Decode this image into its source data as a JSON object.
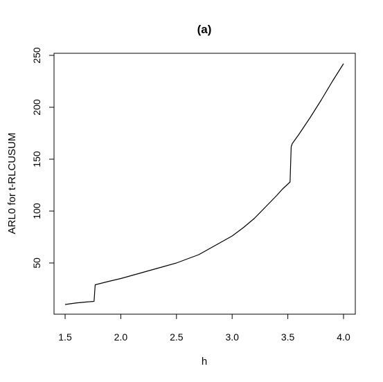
{
  "chart_data": {
    "type": "line",
    "title": "(a)",
    "xlabel": "h",
    "ylabel": "ARL0 for t-RLCUSUM",
    "xlim": [
      1.5,
      4.0
    ],
    "ylim": [
      10,
      242
    ],
    "xticks": [
      1.5,
      2.0,
      2.5,
      3.0,
      3.5,
      4.0
    ],
    "xtick_labels": [
      "1.5",
      "2.0",
      "2.5",
      "3.0",
      "3.5",
      "4.0"
    ],
    "yticks": [
      50,
      100,
      150,
      200,
      250
    ],
    "ytick_labels": [
      "50",
      "100",
      "150",
      "200",
      "250"
    ],
    "grid": false,
    "series": [
      {
        "name": "",
        "color": "#000000",
        "x": [
          1.5,
          1.6,
          1.7,
          1.76,
          1.765,
          1.77,
          1.9,
          2.0,
          2.1,
          2.2,
          2.3,
          2.4,
          2.5,
          2.6,
          2.7,
          2.8,
          2.9,
          3.0,
          3.1,
          3.2,
          3.3,
          3.4,
          3.45,
          3.52,
          3.53,
          3.54,
          3.6,
          3.7,
          3.8,
          3.9,
          4.0
        ],
        "y": [
          10,
          11.5,
          12.5,
          13,
          21,
          29,
          32.5,
          35,
          38,
          41,
          44,
          47,
          50,
          54,
          58,
          64,
          70,
          76,
          84,
          93,
          104,
          115,
          121,
          128,
          162,
          165,
          174,
          190,
          207,
          225,
          242
        ]
      }
    ]
  }
}
